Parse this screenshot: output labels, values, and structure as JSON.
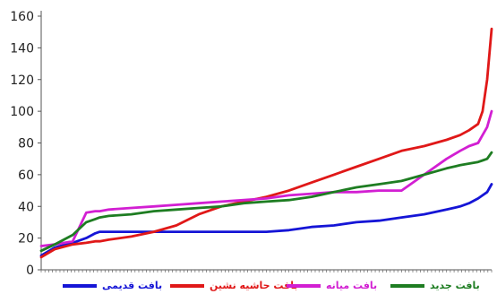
{
  "chart_data": {
    "type": "line",
    "title": "",
    "xlabel": "",
    "ylabel": "",
    "ylim": [
      0,
      160
    ],
    "yticks": [
      0,
      20,
      40,
      60,
      80,
      100,
      120,
      140,
      160
    ],
    "grid": false,
    "legend_placement": "bottom",
    "x": [
      0,
      0.03,
      0.07,
      0.1,
      0.12,
      0.13,
      0.15,
      0.2,
      0.25,
      0.3,
      0.35,
      0.4,
      0.45,
      0.5,
      0.55,
      0.6,
      0.65,
      0.7,
      0.75,
      0.8,
      0.85,
      0.9,
      0.93,
      0.95,
      0.97,
      0.98,
      0.99,
      1.0
    ],
    "series": [
      {
        "name": "بافت قدیمی",
        "color": "#1515d6",
        "values": [
          9,
          14,
          17,
          20,
          23,
          24,
          24,
          24,
          24,
          24,
          24,
          24,
          24,
          24,
          25,
          27,
          28,
          30,
          31,
          33,
          35,
          38,
          40,
          42,
          45,
          47,
          49,
          54
        ]
      },
      {
        "name": "بافت حاشیه نشین",
        "color": "#e01818",
        "values": [
          8,
          13,
          16,
          17,
          18,
          18,
          19,
          21,
          24,
          28,
          35,
          40,
          43,
          46,
          50,
          55,
          60,
          65,
          70,
          75,
          78,
          82,
          85,
          88,
          92,
          100,
          120,
          152
        ]
      },
      {
        "name": "بافت میانه",
        "color": "#d21fd2",
        "values": [
          15,
          16,
          18,
          36,
          37,
          37,
          38,
          39,
          40,
          41,
          42,
          43,
          44,
          45,
          47,
          48,
          49,
          49,
          50,
          50,
          60,
          70,
          75,
          78,
          80,
          85,
          90,
          100
        ]
      },
      {
        "name": "بافت جدید",
        "color": "#1e7d22",
        "values": [
          12,
          16,
          22,
          30,
          32,
          33,
          34,
          35,
          37,
          38,
          39,
          40,
          42,
          43,
          44,
          46,
          49,
          52,
          54,
          56,
          60,
          64,
          66,
          67,
          68,
          69,
          70,
          74
        ]
      }
    ]
  }
}
